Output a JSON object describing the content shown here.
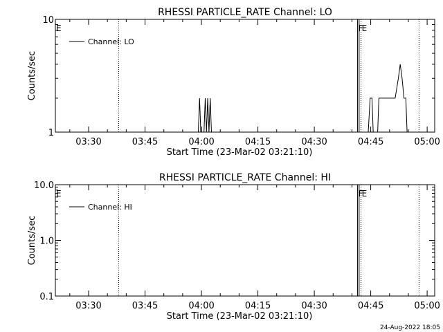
{
  "footer": {
    "date_stamp": "24-Aug-2022 18:05"
  },
  "chart_data": [
    {
      "type": "line",
      "title": "RHESSI PARTICLE_RATE Channel: LO",
      "xlabel": "Start Time (23-Mar-02 03:21:10)",
      "ylabel": "Counts/sec",
      "y_scale": "log",
      "ylim": [
        1,
        10
      ],
      "xlim": [
        "03:21:10",
        "05:02:00"
      ],
      "x_ticks": [
        "03:30",
        "03:45",
        "04:00",
        "04:15",
        "04:30",
        "04:45",
        "05:00"
      ],
      "y_ticks": [
        "1",
        "10"
      ],
      "legend": {
        "entries": [
          "Channel: LO"
        ],
        "position": "top-left"
      },
      "markers": [
        {
          "label": "E",
          "time": "03:21:10",
          "style": "solid"
        },
        {
          "label": "",
          "time": "03:38:00",
          "style": "dotted"
        },
        {
          "label": "F",
          "time": "04:41:30",
          "style": "solid"
        },
        {
          "label": "",
          "time": "04:41:55",
          "style": "solid"
        },
        {
          "label": "E",
          "time": "04:42:25",
          "style": "dotted"
        },
        {
          "label": "",
          "time": "04:57:50",
          "style": "dotted"
        }
      ],
      "series": [
        {
          "name": "Channel: LO",
          "points": [
            [
              "03:59:10",
              1
            ],
            [
              "03:59:30",
              2
            ],
            [
              "03:59:50",
              1
            ],
            [
              "04:00:40",
              1
            ],
            [
              "04:01:00",
              2
            ],
            [
              "04:01:20",
              1
            ],
            [
              "04:01:40",
              2
            ],
            [
              "04:02:00",
              1
            ],
            [
              "04:02:20",
              2
            ],
            [
              "04:02:40",
              1
            ],
            [
              "04:44:20",
              1
            ],
            [
              "04:44:50",
              2
            ],
            [
              "04:45:20",
              2
            ],
            [
              "04:45:40",
              1
            ],
            [
              "04:46:50",
              1
            ],
            [
              "04:47:10",
              2
            ],
            [
              "04:51:30",
              2
            ],
            [
              "04:52:20",
              3
            ],
            [
              "04:52:50",
              4
            ],
            [
              "04:53:20",
              3
            ],
            [
              "04:53:50",
              2
            ],
            [
              "04:54:20",
              2
            ],
            [
              "04:54:40",
              1
            ]
          ]
        }
      ]
    },
    {
      "type": "line",
      "title": "RHESSI PARTICLE_RATE Channel: HI",
      "xlabel": "Start Time (23-Mar-02 03:21:10)",
      "ylabel": "Counts/sec",
      "y_scale": "log",
      "ylim": [
        0.1,
        10
      ],
      "xlim": [
        "03:21:10",
        "05:02:00"
      ],
      "x_ticks": [
        "03:30",
        "03:45",
        "04:00",
        "04:15",
        "04:30",
        "04:45",
        "05:00"
      ],
      "y_ticks": [
        "0.1",
        "1.0",
        "10.0"
      ],
      "legend": {
        "entries": [
          "Channel: HI"
        ],
        "position": "top-left"
      },
      "markers": [
        {
          "label": "E",
          "time": "03:21:10",
          "style": "solid"
        },
        {
          "label": "",
          "time": "03:38:00",
          "style": "dotted"
        },
        {
          "label": "F",
          "time": "04:41:30",
          "style": "solid"
        },
        {
          "label": "",
          "time": "04:41:55",
          "style": "solid"
        },
        {
          "label": "E",
          "time": "04:42:25",
          "style": "dotted"
        },
        {
          "label": "",
          "time": "04:57:50",
          "style": "dotted"
        }
      ],
      "series": [
        {
          "name": "Channel: HI",
          "points": []
        }
      ]
    }
  ]
}
